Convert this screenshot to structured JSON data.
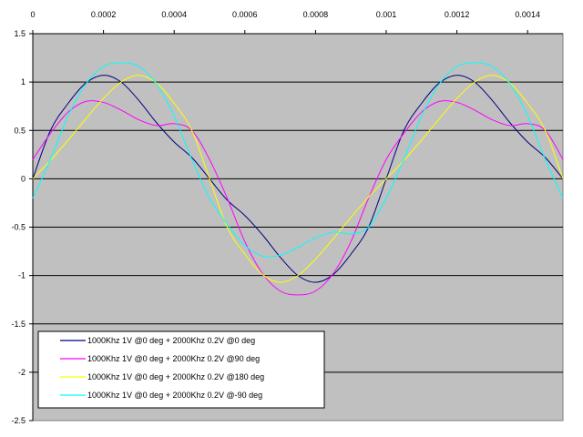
{
  "chart_data": {
    "type": "line",
    "title": "",
    "xlabel": "",
    "ylabel": "",
    "xlim": [
      0,
      0.0015
    ],
    "ylim": [
      -2.5,
      1.5
    ],
    "x_ticks": [
      0,
      0.0002,
      0.0004,
      0.0006,
      0.0008,
      0.001,
      0.0012,
      0.0014
    ],
    "x_tick_labels": [
      "0",
      "0.0002",
      "0.0004",
      "0.0006",
      "0.0008",
      "0.001",
      "0.0012",
      "0.0014"
    ],
    "x_axis_position": "top",
    "y_ticks": [
      1.5,
      1,
      0.5,
      0,
      -0.5,
      -1,
      -1.5,
      -2,
      -2.5
    ],
    "y_tick_labels": [
      "1.5",
      "1",
      "0.5",
      "0",
      "-0.5",
      "-1",
      "-1.5",
      "-2",
      "-2.5"
    ],
    "grid": "horizontal",
    "plot_background": "#c0c0c0",
    "legend_position": "bottom-left",
    "x": [
      0,
      5e-05,
      0.0001,
      0.00015,
      0.0002,
      0.00025,
      0.0003,
      0.00035,
      0.0004,
      0.00045,
      0.0005,
      0.00055,
      0.0006,
      0.00065,
      0.0007,
      0.00075,
      0.0008,
      0.00085,
      0.0009,
      0.00095,
      0.001,
      0.00105,
      0.0011,
      0.00115,
      0.0012,
      0.00125,
      0.0013,
      0.00135,
      0.0014,
      0.00145,
      0.0015
    ],
    "series": [
      {
        "name": "1000Khz 1V @0 deg + 2000Khz 0.2V @0 deg",
        "color": "#000080",
        "values": [
          0,
          0.5,
          0.78,
          0.99,
          1.07,
          1.0,
          0.81,
          0.58,
          0.38,
          0.22,
          0.0,
          -0.22,
          -0.38,
          -0.58,
          -0.81,
          -1.0,
          -1.07,
          -0.99,
          -0.78,
          -0.5,
          0,
          0.5,
          0.78,
          0.99,
          1.07,
          1.0,
          0.81,
          0.58,
          0.38,
          0.22,
          0.0
        ]
      },
      {
        "name": "1000Khz 1V @0 deg + 2000Khz 0.2V @90 deg",
        "color": "#ff00ff",
        "values": [
          0.2,
          0.47,
          0.69,
          0.8,
          0.79,
          0.71,
          0.61,
          0.55,
          0.57,
          0.5,
          0.2,
          -0.2,
          -0.65,
          -0.98,
          -1.16,
          -1.2,
          -1.16,
          -0.98,
          -0.65,
          -0.2,
          0.2,
          0.47,
          0.69,
          0.8,
          0.79,
          0.71,
          0.61,
          0.55,
          0.57,
          0.5,
          0.2
        ]
      },
      {
        "name": "1000Khz 1V @0 deg + 2000Khz 0.2V @180 deg",
        "color": "#ffff00",
        "values": [
          0,
          0.19,
          0.4,
          0.62,
          0.83,
          1.0,
          1.07,
          0.99,
          0.78,
          0.5,
          0,
          -0.5,
          -0.78,
          -0.99,
          -1.07,
          -1.0,
          -0.83,
          -0.62,
          -0.4,
          -0.19,
          0,
          0.19,
          0.4,
          0.62,
          0.83,
          1.0,
          1.07,
          0.99,
          0.78,
          0.5,
          0
        ]
      },
      {
        "name": "1000Khz 1V @0 deg + 2000Khz 0.2V @-90 deg",
        "color": "#00ffff",
        "values": [
          -0.2,
          0.2,
          0.65,
          0.98,
          1.16,
          1.2,
          1.16,
          0.98,
          0.65,
          0.2,
          -0.2,
          -0.47,
          -0.69,
          -0.8,
          -0.79,
          -0.71,
          -0.61,
          -0.55,
          -0.57,
          -0.5,
          -0.2,
          0.2,
          0.65,
          0.98,
          1.16,
          1.2,
          1.16,
          0.98,
          0.65,
          0.2,
          -0.2
        ]
      }
    ]
  }
}
